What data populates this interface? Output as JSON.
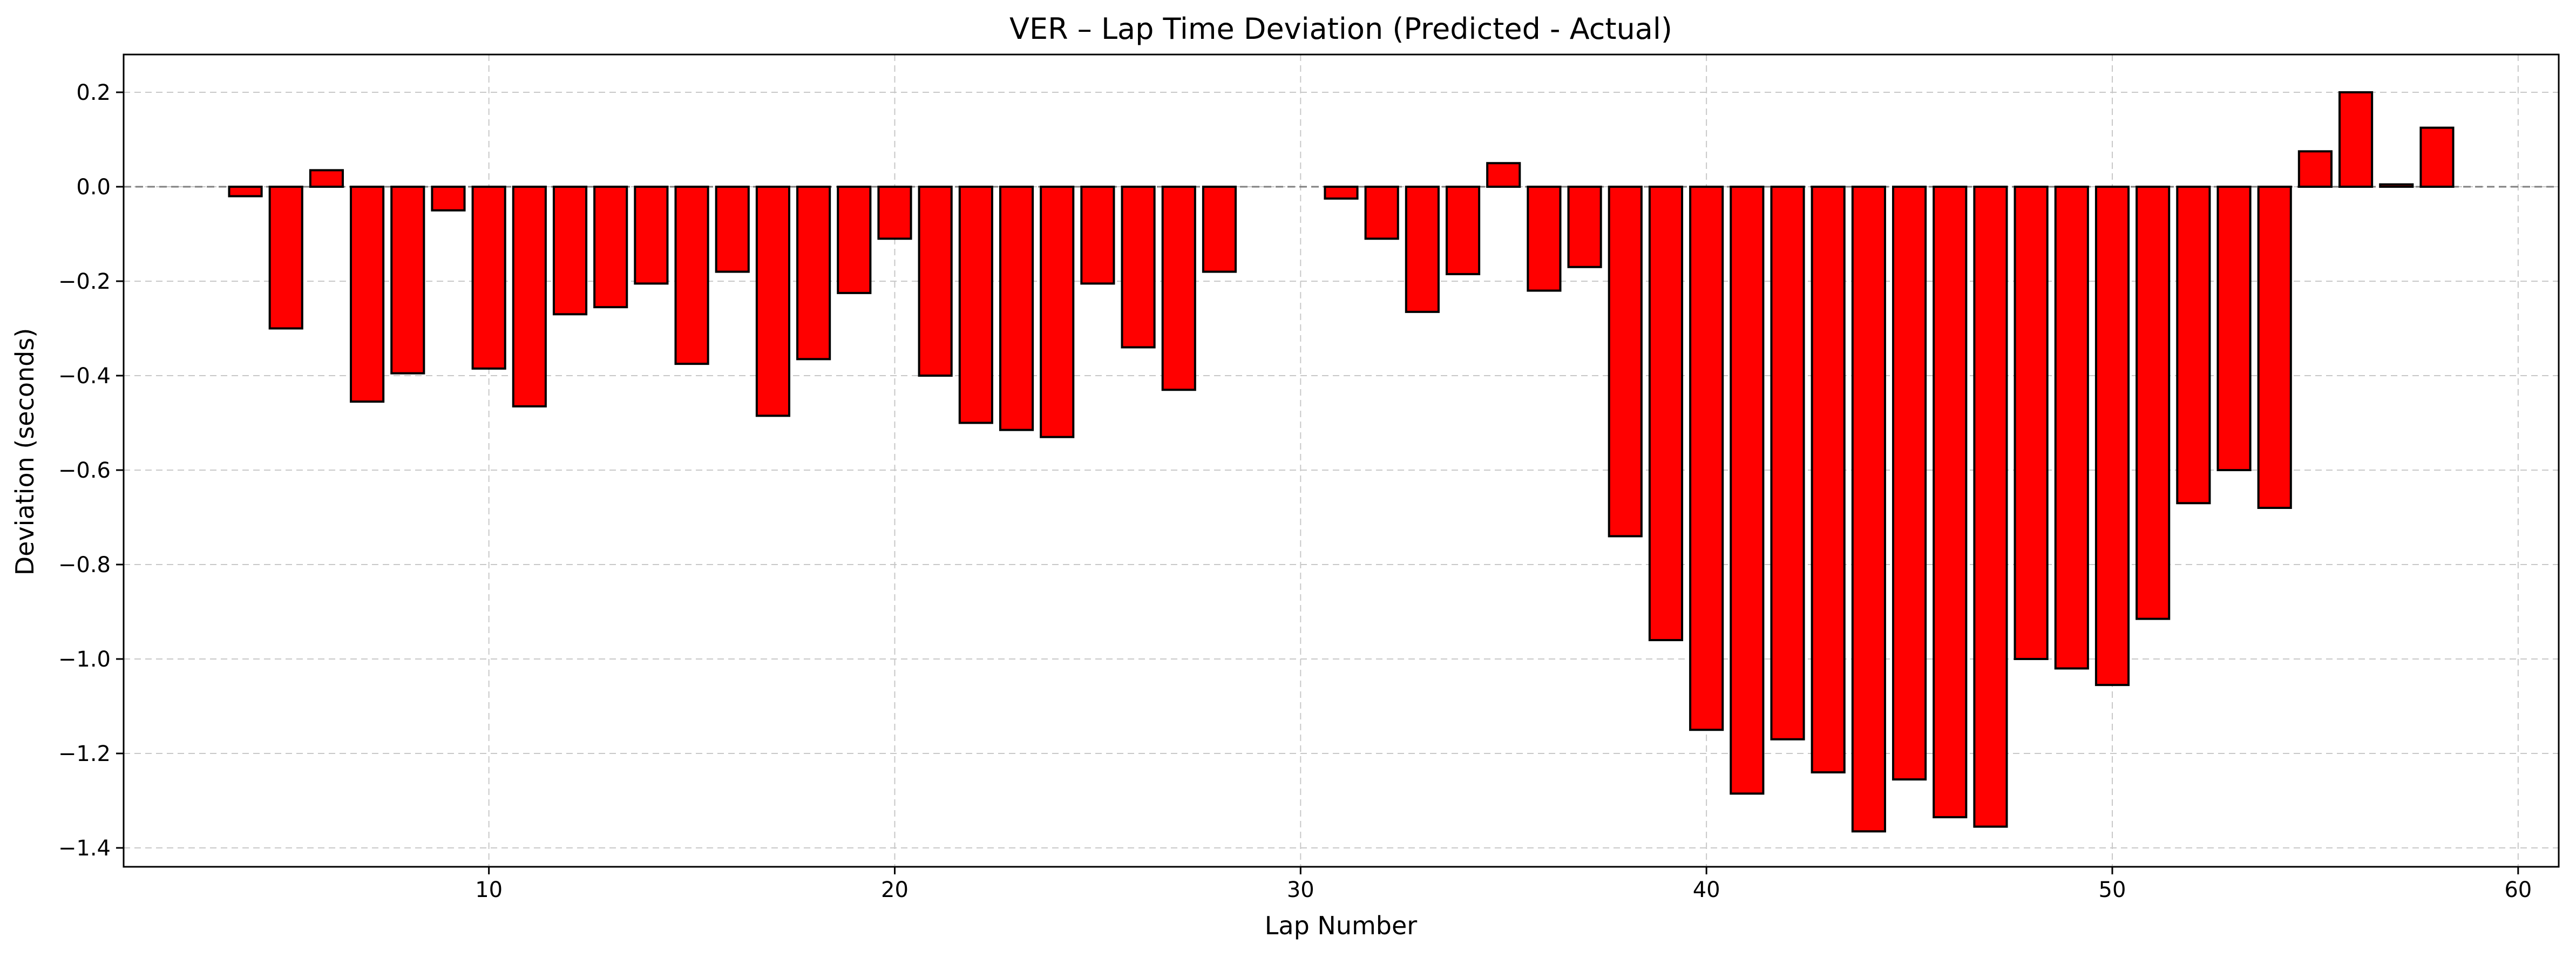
{
  "chart_data": {
    "type": "bar",
    "title": "VER – Lap Time Deviation (Predicted - Actual)",
    "xlabel": "Lap Number",
    "ylabel": "Deviation (seconds)",
    "xlim": [
      1,
      61
    ],
    "ylim": [
      -1.44,
      0.28
    ],
    "xticks": [
      10,
      20,
      30,
      40,
      50,
      60
    ],
    "yticks": [
      0.2,
      0.0,
      -0.2,
      -0.4,
      -0.6,
      -0.8,
      -1.0,
      -1.2,
      -1.4
    ],
    "ytick_labels": [
      "0.2",
      "0.0",
      "−0.2",
      "−0.4",
      "−0.6",
      "−0.8",
      "−1.0",
      "−1.2",
      "−1.4"
    ],
    "grid": true,
    "reference_line": 0.0,
    "bar_color": "#ff0000",
    "bar_edge_color": "#000000",
    "x": [
      4,
      5,
      6,
      7,
      8,
      9,
      10,
      11,
      12,
      13,
      14,
      15,
      16,
      17,
      18,
      19,
      20,
      21,
      22,
      23,
      24,
      25,
      26,
      27,
      28,
      31,
      32,
      33,
      34,
      35,
      36,
      37,
      38,
      39,
      40,
      41,
      42,
      43,
      44,
      45,
      46,
      47,
      48,
      49,
      50,
      51,
      52,
      53,
      54,
      55,
      56,
      57,
      58
    ],
    "values": [
      -0.02,
      -0.3,
      0.035,
      -0.455,
      -0.395,
      -0.05,
      -0.385,
      -0.465,
      -0.27,
      -0.255,
      -0.205,
      -0.375,
      -0.18,
      -0.485,
      -0.365,
      -0.225,
      -0.11,
      -0.4,
      -0.5,
      -0.515,
      -0.53,
      -0.205,
      -0.34,
      -0.43,
      -0.18,
      -0.025,
      -0.11,
      -0.265,
      -0.185,
      0.05,
      -0.22,
      -0.17,
      -0.74,
      -0.96,
      -1.15,
      -1.285,
      -1.17,
      -1.24,
      -1.365,
      -1.255,
      -1.335,
      -1.355,
      -1.0,
      -1.02,
      -1.055,
      -0.915,
      -0.67,
      -0.6,
      -0.68,
      0.075,
      0.2,
      0.005,
      0.125
    ]
  }
}
